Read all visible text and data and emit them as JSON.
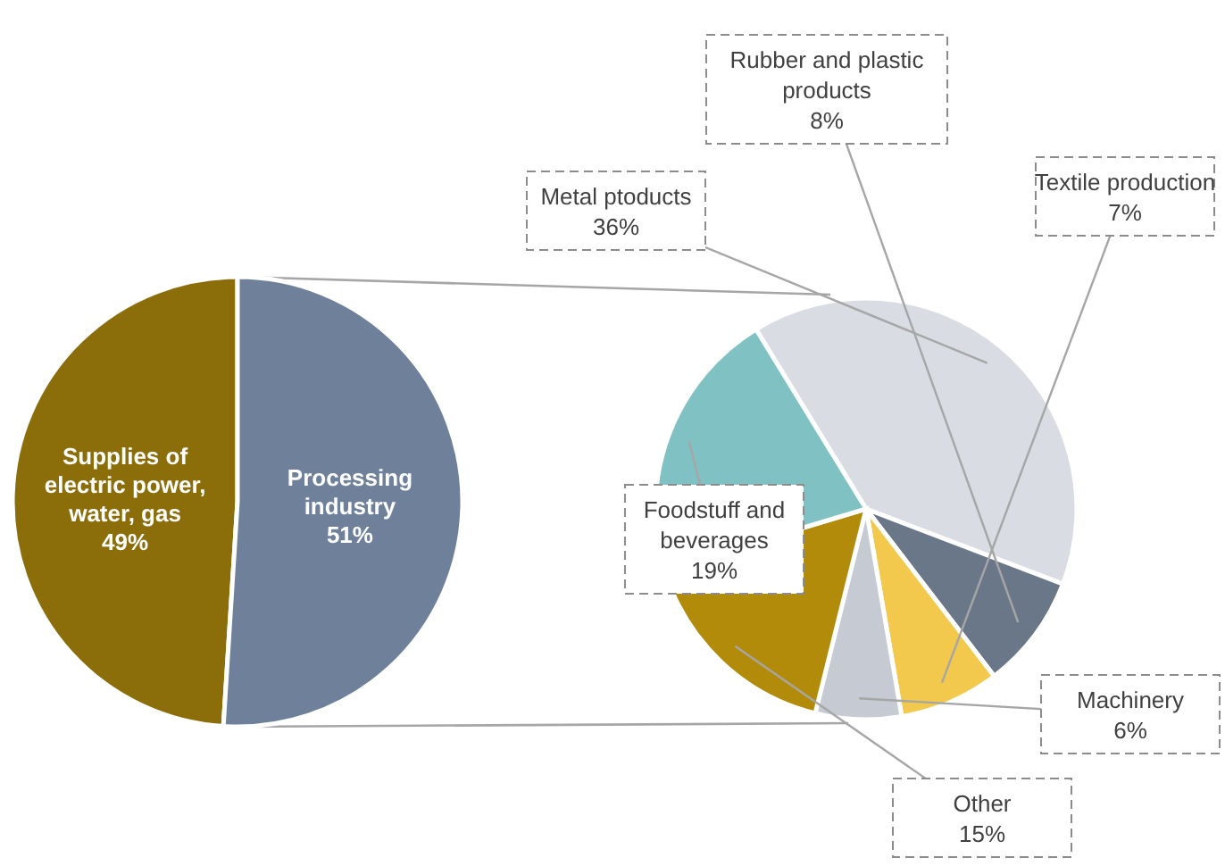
{
  "chart_data": [
    {
      "type": "pie",
      "categories": [
        "Supplies of electric power, water, gas",
        "Processing industry"
      ],
      "values": [
        49,
        51
      ],
      "colors": [
        "#8b6e0a",
        "#6f819a"
      ],
      "value_labels": [
        "49%",
        "51%"
      ]
    },
    {
      "type": "pie",
      "categories": [
        "Metal ptoducts",
        "Rubber and plastic products",
        "Textile production",
        "Machinery",
        "Other",
        "Foodstuff and beverages"
      ],
      "values": [
        36,
        8,
        7,
        6,
        15,
        19
      ],
      "colors": [
        "#d9dce3",
        "#6a7788",
        "#f2c94c",
        "#c5cad3",
        "#b38b0b",
        "#80c2c3"
      ],
      "value_labels": [
        "36%",
        "8%",
        "7%",
        "6%",
        "15%",
        "19%"
      ]
    }
  ]
}
